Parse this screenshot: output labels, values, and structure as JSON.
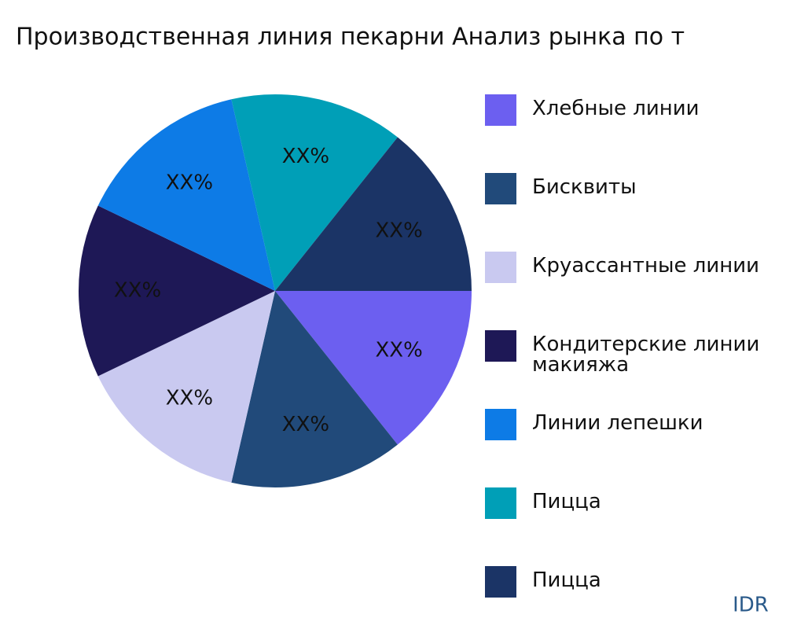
{
  "chart_data": {
    "type": "pie",
    "title": "Производственная линия пекарни Анализ рынка по т",
    "categories": [
      "Хлебные линии",
      "Бисквиты",
      "Круассантные линии",
      "Кондитерские линии\nмакияжа",
      "Линии лепешки",
      "Пицца",
      "Пицца"
    ],
    "values": [
      14.3,
      14.3,
      14.3,
      14.3,
      14.3,
      14.3,
      14.3
    ],
    "value_labels": [
      "XX%",
      "XX%",
      "XX%",
      "XX%",
      "XX%",
      "XX%",
      "XX%"
    ],
    "colors": [
      "#6c5ff0",
      "#214a7a",
      "#c9c9f0",
      "#1e1856",
      "#0d7be6",
      "#009fb7",
      "#1b3466"
    ],
    "watermark": "IDR"
  }
}
